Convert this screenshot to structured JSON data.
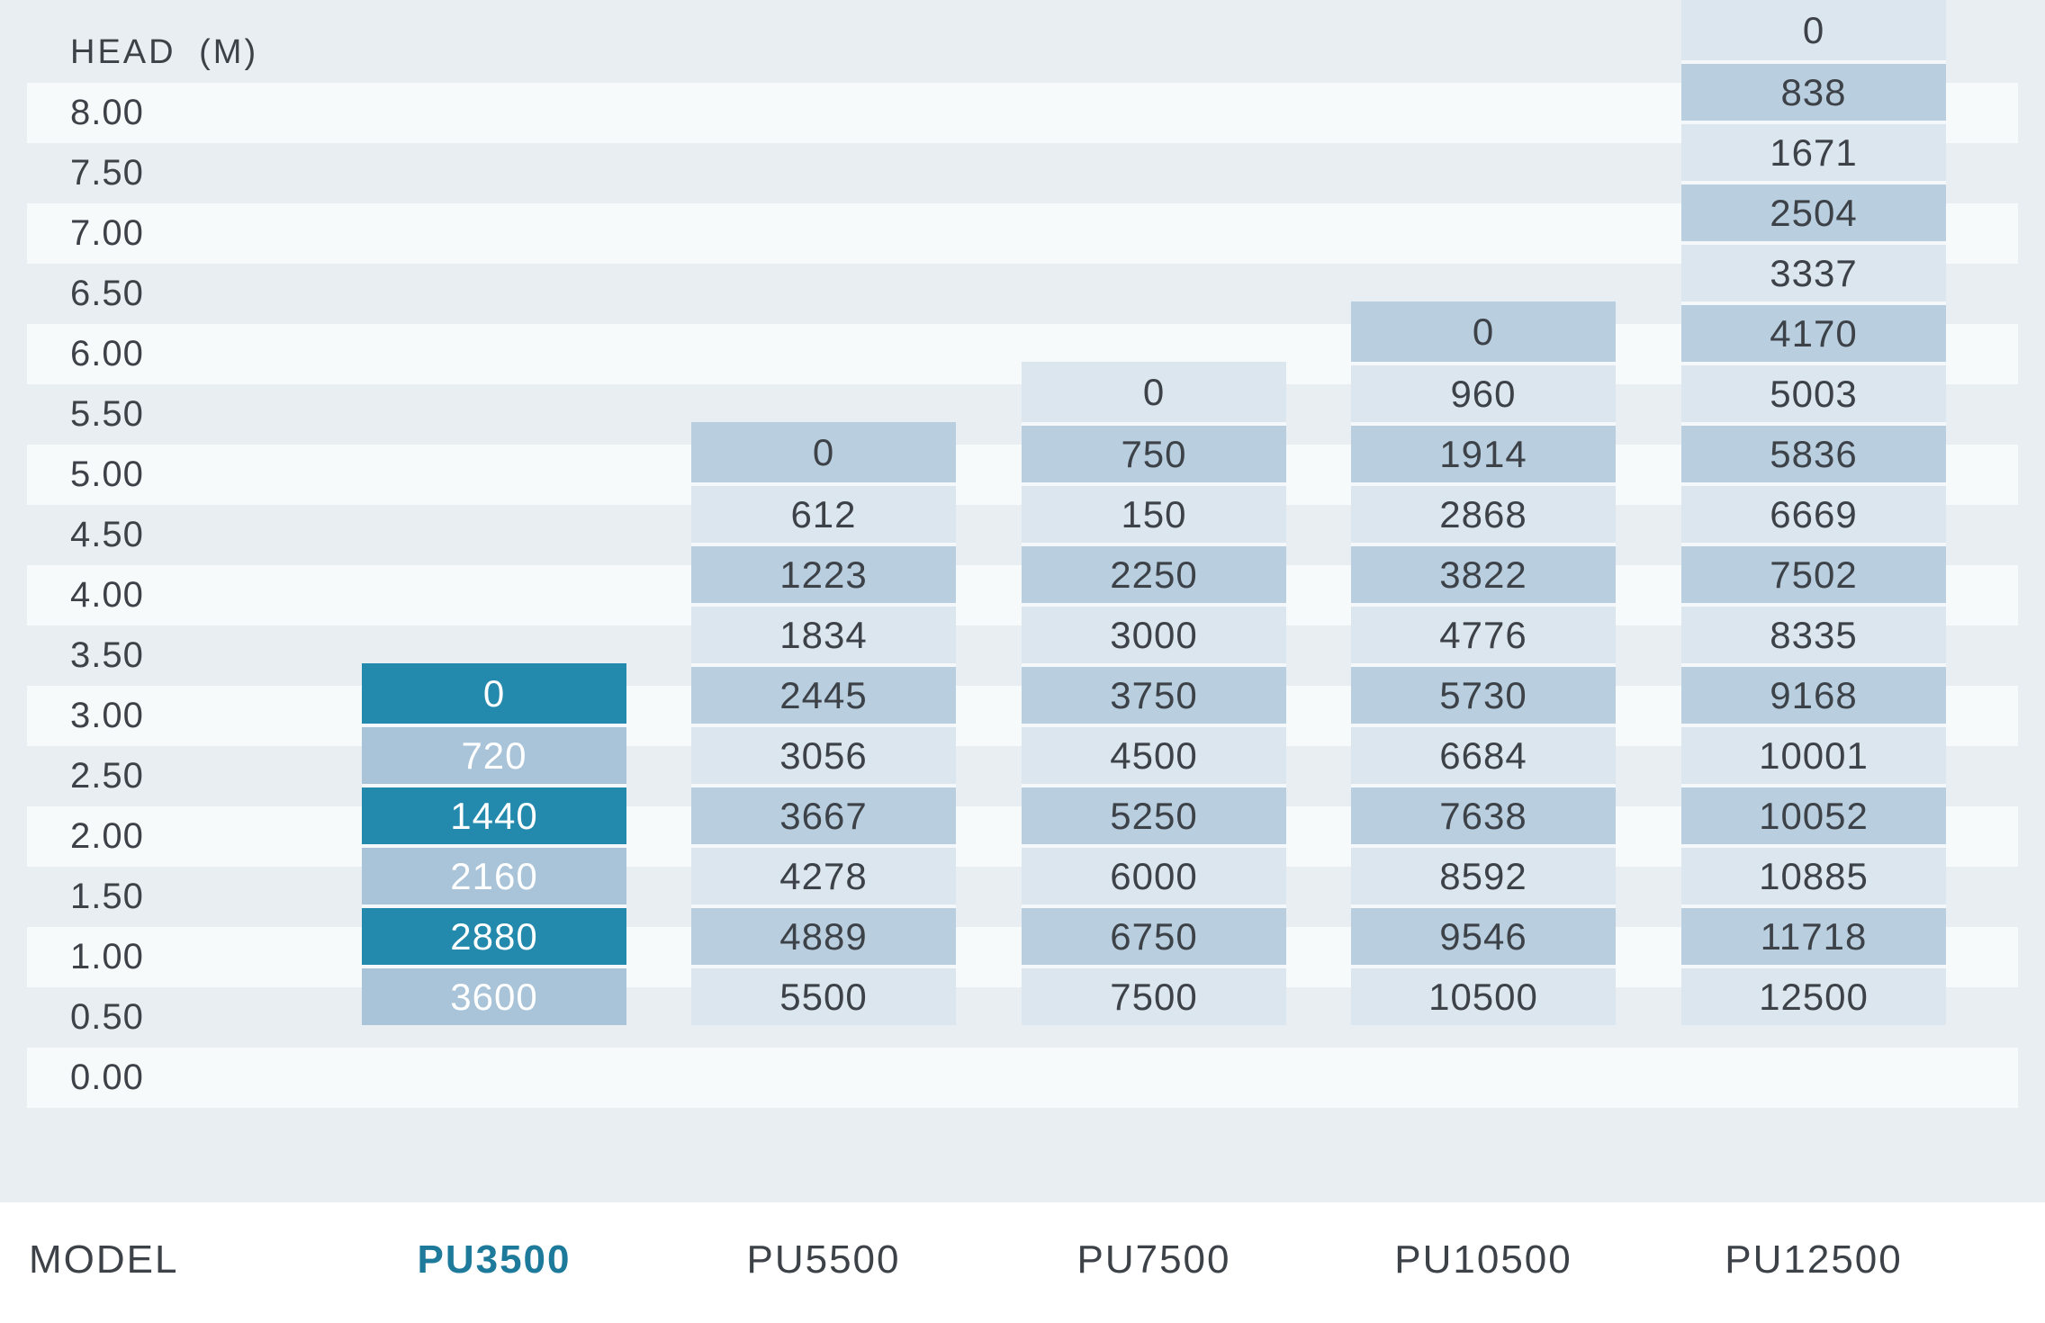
{
  "header": {
    "title": "HEAD (M)"
  },
  "table": {
    "row_heads": [
      "8.00",
      "7.50",
      "7.00",
      "6.50",
      "6.00",
      "5.50",
      "5.00",
      "4.50",
      "4.00",
      "3.50",
      "3.00",
      "2.50",
      "2.00",
      "1.50",
      "1.00",
      "0.50",
      "0.00"
    ],
    "columns": [
      {
        "model": "PU3500",
        "start_row": 11,
        "highlight": true,
        "values": [
          "0",
          "720",
          "1440",
          "2160",
          "2880",
          "3600"
        ]
      },
      {
        "model": "PU5500",
        "start_row": 7,
        "highlight": false,
        "values": [
          "0",
          "612",
          "1223",
          "1834",
          "2445",
          "3056",
          "3667",
          "4278",
          "4889",
          "5500"
        ]
      },
      {
        "model": "PU7500",
        "start_row": 6,
        "highlight": false,
        "values": [
          "0",
          "750",
          "150",
          "2250",
          "3000",
          "3750",
          "4500",
          "5250",
          "6000",
          "6750",
          "7500"
        ]
      },
      {
        "model": "PU10500",
        "start_row": 5,
        "highlight": false,
        "values": [
          "0",
          "960",
          "1914",
          "2868",
          "3822",
          "4776",
          "5730",
          "6684",
          "7638",
          "8592",
          "9546",
          "10500"
        ]
      },
      {
        "model": "PU12500",
        "start_row": 0,
        "highlight": false,
        "values": [
          "0",
          "838",
          "1671",
          "2504",
          "3337",
          "4170",
          "5003",
          "5836",
          "6669",
          "7502",
          "8335",
          "9168",
          "10001",
          "10052",
          "10885",
          "11718",
          "12500"
        ]
      }
    ]
  },
  "footer": {
    "model_label": "MODEL"
  },
  "colors": {
    "page_background": "#e9eef2",
    "row_stripe": "#f7fafb",
    "cell_light_blue": "#dce6ee",
    "cell_dark_blue": "#b9cfe0",
    "highlight_teal": "#2389ad",
    "highlight_muted": "#a9c4d8",
    "text_dark": "#3d4248",
    "text_on_highlight": "#ffffff",
    "brand_label_teal": "#1e7a9b"
  },
  "chart_data": {
    "type": "table",
    "title": "HEAD (M)",
    "row_axis_label": "HEAD (M)",
    "column_axis_label": "MODEL",
    "head_m": [
      8.0,
      7.5,
      7.0,
      6.5,
      6.0,
      5.5,
      5.0,
      4.5,
      4.0,
      3.5,
      3.0,
      2.5,
      2.0,
      1.5,
      1.0,
      0.5,
      0.0
    ],
    "series": [
      {
        "name": "PU3500",
        "points": {
          "2.50": 0,
          "2.00": 720,
          "1.50": 1440,
          "1.00": 2160,
          "0.50": 2880,
          "0.00": 3600
        }
      },
      {
        "name": "PU5500",
        "points": {
          "4.50": 0,
          "4.00": 612,
          "3.50": 1223,
          "3.00": 1834,
          "2.50": 2445,
          "2.00": 3056,
          "1.50": 3667,
          "1.00": 4278,
          "0.50": 4889,
          "0.00": 5500
        }
      },
      {
        "name": "PU7500",
        "points": {
          "5.00": 0,
          "4.50": 750,
          "4.00": 150,
          "3.50": 2250,
          "3.00": 3000,
          "2.50": 3750,
          "2.00": 4500,
          "1.50": 5250,
          "1.00": 6000,
          "0.50": 6750,
          "0.00": 7500
        }
      },
      {
        "name": "PU10500",
        "points": {
          "5.50": 0,
          "5.00": 960,
          "4.50": 1914,
          "4.00": 2868,
          "3.50": 3822,
          "3.00": 4776,
          "2.50": 5730,
          "2.00": 6684,
          "1.50": 7638,
          "1.00": 8592,
          "0.50": 9546,
          "0.00": 10500
        }
      },
      {
        "name": "PU12500",
        "points": {
          "8.00": 0,
          "7.50": 838,
          "7.00": 1671,
          "6.50": 2504,
          "6.00": 3337,
          "5.50": 4170,
          "5.00": 5003,
          "4.50": 5836,
          "4.00": 6669,
          "3.50": 7502,
          "3.00": 8335,
          "2.50": 9168,
          "2.00": 10001,
          "1.50": 10052,
          "1.00": 10885,
          "0.50": 11718,
          "0.00": 12500
        }
      }
    ],
    "legend_position": "bottom",
    "grid": "alternating-row-stripes"
  }
}
